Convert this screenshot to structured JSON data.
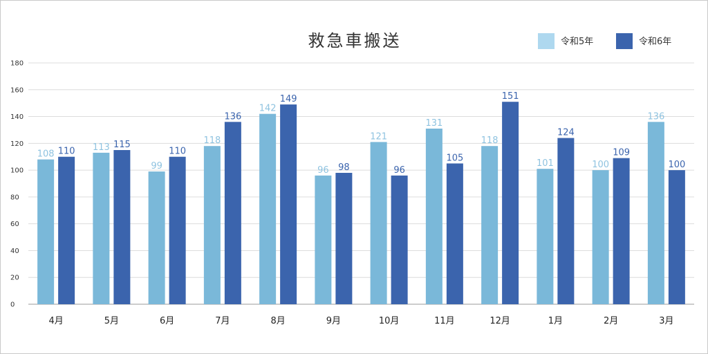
{
  "chart_data": {
    "type": "bar",
    "title": "救急車搬送",
    "categories": [
      "4月",
      "5月",
      "6月",
      "7月",
      "8月",
      "9月",
      "10月",
      "11月",
      "12月",
      "1月",
      "2月",
      "3月"
    ],
    "series": [
      {
        "name": "令和5年",
        "color": "#7ab8d9",
        "legend_color": "#aed8ef",
        "label_color": "#8fc3e0",
        "values": [
          108,
          113,
          99,
          118,
          142,
          96,
          121,
          131,
          118,
          101,
          100,
          136
        ]
      },
      {
        "name": "令和6年",
        "color": "#3b64ad",
        "legend_color": "#3b64ad",
        "label_color": "#3b64ad",
        "values": [
          110,
          115,
          110,
          136,
          149,
          98,
          96,
          105,
          151,
          124,
          109,
          100
        ]
      }
    ],
    "ylim": [
      0,
      180
    ],
    "yticks": [
      0,
      20,
      40,
      60,
      80,
      100,
      120,
      140,
      160,
      180
    ],
    "grid": true,
    "legend_position": "top-right",
    "data_labels": true,
    "xlabel": "",
    "ylabel": ""
  }
}
